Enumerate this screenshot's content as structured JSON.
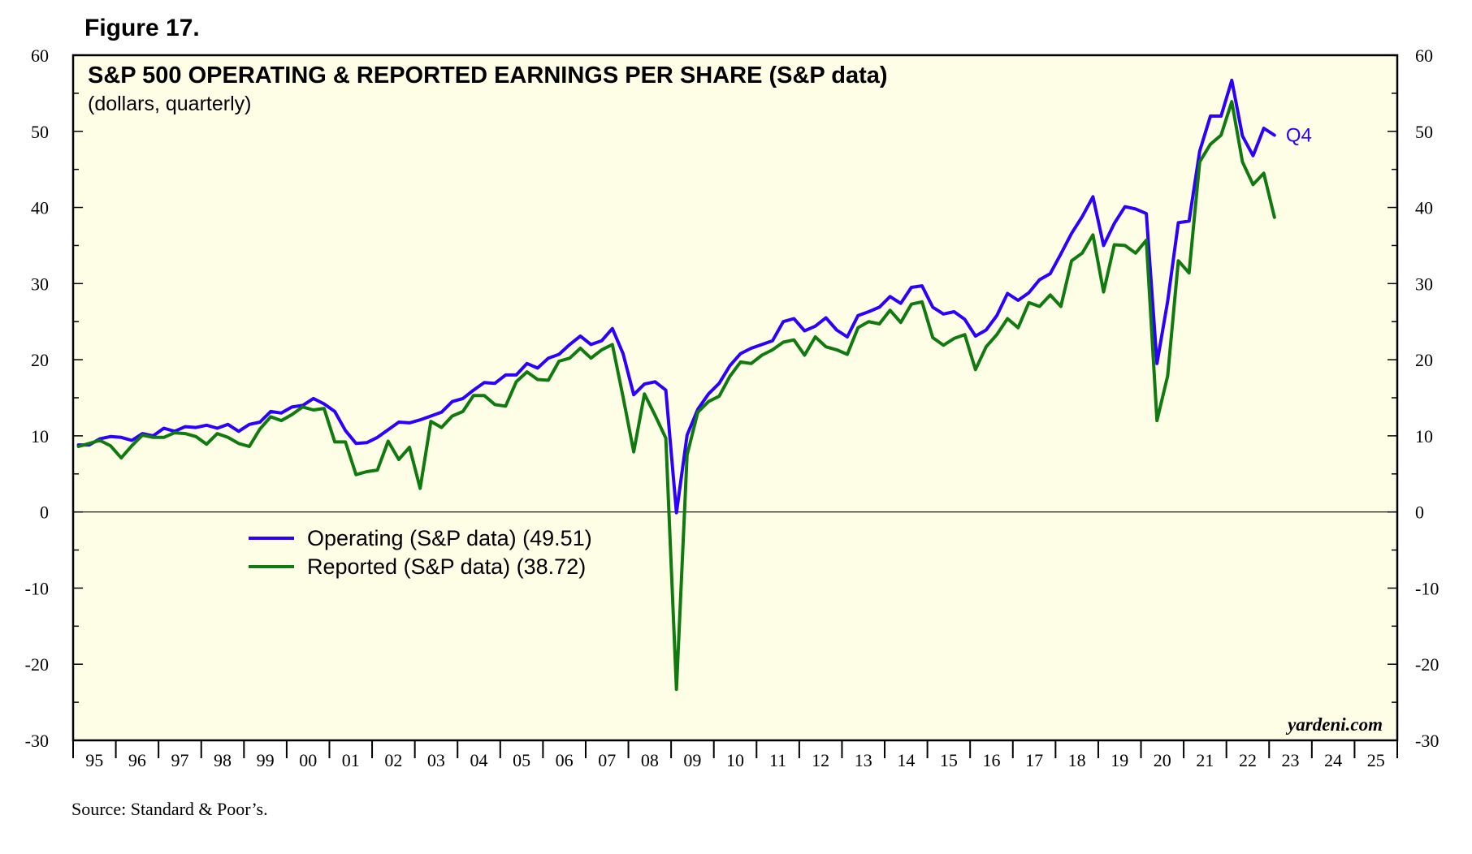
{
  "figure_label": "Figure 17.",
  "source": "Source: Standard & Poor’s.",
  "credit": "yardeni.com",
  "end_label": "Q4",
  "colors": {
    "operating": "#2b00ff",
    "reported": "#107a10",
    "plot_bg": "#fefee6"
  },
  "chart_data": {
    "type": "line",
    "title": "S&P 500 OPERATING & REPORTED EARNINGS PER SHARE (S&P data)",
    "subtitle": "(dollars, quarterly)",
    "ylim": [
      -30,
      60
    ],
    "y_ticks": [
      "60",
      "50",
      "40",
      "30",
      "20",
      "10",
      "0",
      "-10",
      "-20",
      "-30"
    ],
    "x_range": [
      1995,
      2026
    ],
    "x_tick_labels": [
      "95",
      "96",
      "97",
      "98",
      "99",
      "00",
      "01",
      "02",
      "03",
      "04",
      "05",
      "06",
      "07",
      "08",
      "09",
      "10",
      "11",
      "12",
      "13",
      "14",
      "15",
      "16",
      "17",
      "18",
      "19",
      "20",
      "21",
      "22",
      "23",
      "24",
      "25"
    ],
    "legend_position": "center-left",
    "series": [
      {
        "name": "Operating (S&P data) (49.51)",
        "start_year": 1995,
        "values": [
          8.8,
          8.8,
          9.6,
          9.9,
          9.8,
          9.4,
          10.3,
          10.0,
          11.0,
          10.6,
          11.2,
          11.1,
          11.4,
          11.0,
          11.5,
          10.6,
          11.5,
          11.8,
          13.2,
          13.0,
          13.8,
          14.0,
          14.9,
          14.2,
          13.2,
          10.7,
          9.0,
          9.1,
          9.8,
          10.8,
          11.8,
          11.7,
          12.1,
          12.6,
          13.1,
          14.5,
          14.9,
          16.0,
          17.0,
          16.9,
          18.0,
          18.0,
          19.5,
          18.9,
          20.2,
          20.7,
          22.0,
          23.1,
          22.0,
          22.5,
          24.1,
          20.8,
          15.4,
          16.8,
          17.1,
          16.0,
          -0.1,
          10.1,
          13.5,
          15.5,
          16.9,
          19.2,
          20.8,
          21.5,
          22.0,
          22.5,
          25.0,
          25.4,
          23.8,
          24.4,
          25.5,
          23.9,
          23.0,
          25.8,
          26.3,
          26.9,
          28.3,
          27.4,
          29.5,
          29.7,
          26.9,
          26.0,
          26.3,
          25.3,
          23.1,
          23.9,
          25.8,
          28.7,
          27.8,
          28.8,
          30.5,
          31.3,
          33.9,
          36.6,
          38.8,
          41.4,
          35.0,
          37.9,
          40.1,
          39.8,
          39.2,
          19.5,
          27.7,
          38.0,
          38.2,
          47.4,
          52.0,
          52.0,
          56.7,
          49.4,
          46.8,
          50.4,
          49.5
        ]
      },
      {
        "name": "Reported (S&P data) (38.72)",
        "start_year": 1995,
        "values": [
          8.6,
          9.0,
          9.4,
          8.7,
          7.1,
          8.7,
          10.1,
          9.8,
          9.8,
          10.4,
          10.3,
          9.9,
          8.9,
          10.3,
          9.8,
          9.0,
          8.6,
          10.9,
          12.5,
          12.0,
          12.8,
          13.8,
          13.4,
          13.6,
          9.2,
          9.2,
          4.9,
          5.3,
          5.5,
          9.3,
          6.9,
          8.5,
          3.1,
          11.9,
          11.1,
          12.6,
          13.2,
          15.3,
          15.3,
          14.1,
          13.9,
          17.1,
          18.4,
          17.4,
          17.3,
          19.8,
          20.2,
          21.5,
          20.2,
          21.3,
          22.0,
          15.1,
          7.9,
          15.5,
          12.7,
          9.7,
          -23.3,
          7.5,
          13.1,
          14.5,
          15.2,
          17.8,
          19.7,
          19.5,
          20.6,
          21.3,
          22.3,
          22.6,
          20.6,
          23.0,
          21.7,
          21.3,
          20.7,
          24.2,
          25.0,
          24.7,
          26.5,
          24.9,
          27.3,
          27.6,
          22.9,
          21.9,
          22.8,
          23.3,
          18.7,
          21.7,
          23.3,
          25.4,
          24.2,
          27.5,
          27.0,
          28.5,
          27.0,
          33.0,
          34.0,
          36.4,
          28.9,
          35.1,
          35.0,
          34.0,
          35.7,
          12.0,
          17.9,
          33.0,
          31.4,
          46.0,
          48.3,
          49.5,
          53.9,
          46.0,
          43.0,
          44.5,
          38.7
        ]
      }
    ]
  }
}
